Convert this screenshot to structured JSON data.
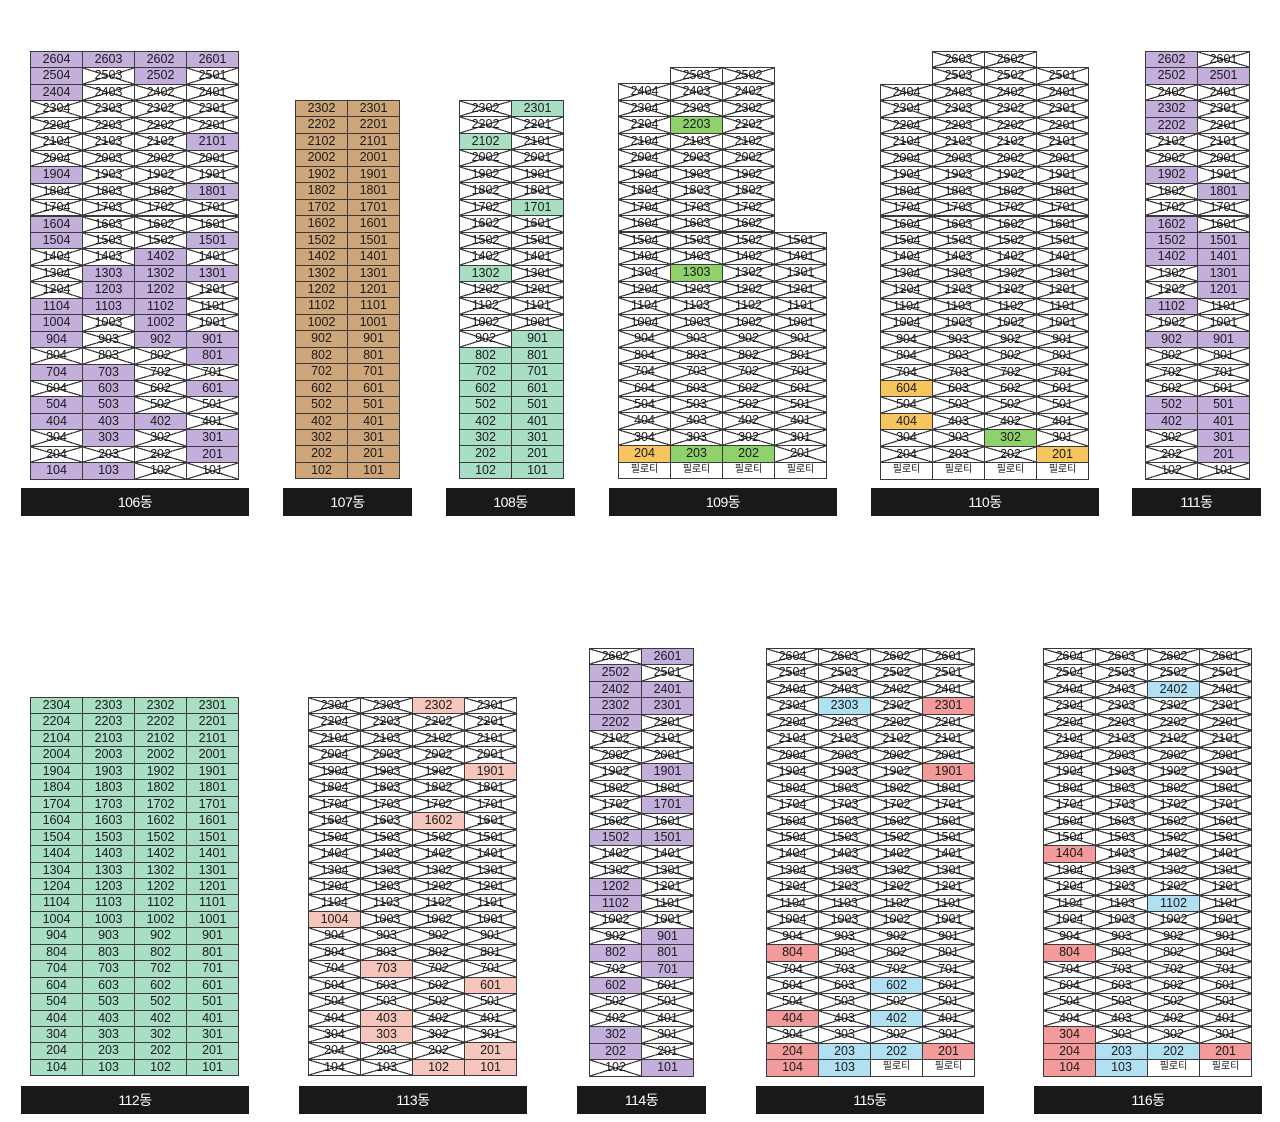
{
  "colors": {
    "P": "#c4aedc",
    "T": "#cfa67a",
    "G": "#a8dfc4",
    "L": "#8fd16a",
    "Y": "#f6c55d",
    "K": "#f6c5bc",
    "R": "#f39a9a",
    "B": "#b1e0f3",
    "X": "#ffffff",
    "pilotis": "#ffffff"
  },
  "pilotis_text": "필로티",
  "buildings": [
    {
      "name": "106동",
      "columns": [
        4,
        3,
        2,
        1
      ],
      "floors": [
        {
          "f": 26,
          "s": "PPPP"
        },
        {
          "f": 25,
          "s": "PXPX"
        },
        {
          "f": 24,
          "s": "PXXX"
        },
        {
          "f": 23,
          "s": "XXXX"
        },
        {
          "f": 22,
          "s": "XXXX"
        },
        {
          "f": 21,
          "s": "XXXP"
        },
        {
          "f": 20,
          "s": "XXXX"
        },
        {
          "f": 19,
          "s": "PXXX"
        },
        {
          "f": 18,
          "s": "XXXP"
        },
        {
          "f": 17,
          "s": "XXXX"
        },
        {
          "f": 16,
          "s": "PXXX"
        },
        {
          "f": 15,
          "s": "PXXP"
        },
        {
          "f": 14,
          "s": "XXPX"
        },
        {
          "f": 13,
          "s": "XPPP"
        },
        {
          "f": 12,
          "s": "XPPX"
        },
        {
          "f": 11,
          "s": "PPPX"
        },
        {
          "f": 10,
          "s": "PXPX"
        },
        {
          "f": 9,
          "s": "PXPP"
        },
        {
          "f": 8,
          "s": "XXXP"
        },
        {
          "f": 7,
          "s": "PPXX"
        },
        {
          "f": 6,
          "s": "XPXP"
        },
        {
          "f": 5,
          "s": "PPXX"
        },
        {
          "f": 4,
          "s": "PPPX"
        },
        {
          "f": 3,
          "s": "XPXP"
        },
        {
          "f": 2,
          "s": "XXXP"
        },
        {
          "f": 1,
          "s": "PPXX"
        }
      ]
    },
    {
      "name": "107동",
      "columns": [
        2,
        1
      ],
      "floors": [
        {
          "f": 23,
          "s": "TT"
        },
        {
          "f": 22,
          "s": "TT"
        },
        {
          "f": 21,
          "s": "TT"
        },
        {
          "f": 20,
          "s": "TT"
        },
        {
          "f": 19,
          "s": "TT"
        },
        {
          "f": 18,
          "s": "TT"
        },
        {
          "f": 17,
          "s": "TT"
        },
        {
          "f": 16,
          "s": "TT"
        },
        {
          "f": 15,
          "s": "TT"
        },
        {
          "f": 14,
          "s": "TT"
        },
        {
          "f": 13,
          "s": "TT"
        },
        {
          "f": 12,
          "s": "TT"
        },
        {
          "f": 11,
          "s": "TT"
        },
        {
          "f": 10,
          "s": "TT"
        },
        {
          "f": 9,
          "s": "TT"
        },
        {
          "f": 8,
          "s": "TT"
        },
        {
          "f": 7,
          "s": "TT"
        },
        {
          "f": 6,
          "s": "TT"
        },
        {
          "f": 5,
          "s": "TT"
        },
        {
          "f": 4,
          "s": "TT"
        },
        {
          "f": 3,
          "s": "TT"
        },
        {
          "f": 2,
          "s": "TT"
        },
        {
          "f": 1,
          "s": "TT"
        }
      ]
    },
    {
      "name": "108동",
      "columns": [
        2,
        1
      ],
      "floors": [
        {
          "f": 23,
          "s": "XG"
        },
        {
          "f": 22,
          "s": "XX"
        },
        {
          "f": 21,
          "s": "GX"
        },
        {
          "f": 20,
          "s": "XX"
        },
        {
          "f": 19,
          "s": "XX"
        },
        {
          "f": 18,
          "s": "XX"
        },
        {
          "f": 17,
          "s": "XG"
        },
        {
          "f": 16,
          "s": "XX"
        },
        {
          "f": 15,
          "s": "XX"
        },
        {
          "f": 14,
          "s": "XX"
        },
        {
          "f": 13,
          "s": "GX"
        },
        {
          "f": 12,
          "s": "XX"
        },
        {
          "f": 11,
          "s": "XX"
        },
        {
          "f": 10,
          "s": "XX"
        },
        {
          "f": 9,
          "s": "XG"
        },
        {
          "f": 8,
          "s": "GG"
        },
        {
          "f": 7,
          "s": "GG"
        },
        {
          "f": 6,
          "s": "GG"
        },
        {
          "f": 5,
          "s": "GG"
        },
        {
          "f": 4,
          "s": "GG"
        },
        {
          "f": 3,
          "s": "GG"
        },
        {
          "f": 2,
          "s": "GG"
        },
        {
          "f": 1,
          "s": "GG"
        }
      ]
    },
    {
      "name": "109동",
      "columns": [
        4,
        3,
        2,
        1
      ],
      "floors": [
        {
          "f": 25,
          "s": "-XX-"
        },
        {
          "f": 24,
          "s": "XXX-"
        },
        {
          "f": 23,
          "s": "XXX-"
        },
        {
          "f": 22,
          "s": "XLX-"
        },
        {
          "f": 21,
          "s": "XXX-"
        },
        {
          "f": 20,
          "s": "XXX-"
        },
        {
          "f": 19,
          "s": "XXX-"
        },
        {
          "f": 18,
          "s": "XXX-"
        },
        {
          "f": 17,
          "s": "XXX-"
        },
        {
          "f": 16,
          "s": "XXX-"
        },
        {
          "f": 15,
          "s": "XXXX"
        },
        {
          "f": 14,
          "s": "XXXX"
        },
        {
          "f": 13,
          "s": "XLXX"
        },
        {
          "f": 12,
          "s": "XXXX"
        },
        {
          "f": 11,
          "s": "XXXX"
        },
        {
          "f": 10,
          "s": "XXXX"
        },
        {
          "f": 9,
          "s": "XXXX"
        },
        {
          "f": 8,
          "s": "XXXX"
        },
        {
          "f": 7,
          "s": "XXXX"
        },
        {
          "f": 6,
          "s": "XXXX"
        },
        {
          "f": 5,
          "s": "XXXX"
        },
        {
          "f": 4,
          "s": "XXXX"
        },
        {
          "f": 3,
          "s": "XXXX"
        },
        {
          "f": 2,
          "s": "YLLX"
        },
        {
          "f": 1,
          "s": "pppp"
        }
      ]
    },
    {
      "name": "110동",
      "columns": [
        4,
        3,
        2,
        1
      ],
      "floors": [
        {
          "f": 26,
          "s": "-XX-"
        },
        {
          "f": 25,
          "s": "-XXX"
        },
        {
          "f": 24,
          "s": "XXXX"
        },
        {
          "f": 23,
          "s": "XXXX"
        },
        {
          "f": 22,
          "s": "XXXX"
        },
        {
          "f": 21,
          "s": "XXXX"
        },
        {
          "f": 20,
          "s": "XXXX"
        },
        {
          "f": 19,
          "s": "XXXX"
        },
        {
          "f": 18,
          "s": "XXXX"
        },
        {
          "f": 17,
          "s": "XXXX"
        },
        {
          "f": 16,
          "s": "XXXX"
        },
        {
          "f": 15,
          "s": "XXXX"
        },
        {
          "f": 14,
          "s": "XXXX"
        },
        {
          "f": 13,
          "s": "XXXX"
        },
        {
          "f": 12,
          "s": "XXXX"
        },
        {
          "f": 11,
          "s": "XXXX"
        },
        {
          "f": 10,
          "s": "XXXX"
        },
        {
          "f": 9,
          "s": "XXXX"
        },
        {
          "f": 8,
          "s": "XXXX"
        },
        {
          "f": 7,
          "s": "XXXX"
        },
        {
          "f": 6,
          "s": "YXXX"
        },
        {
          "f": 5,
          "s": "XXXX"
        },
        {
          "f": 4,
          "s": "YXXX"
        },
        {
          "f": 3,
          "s": "XXLX"
        },
        {
          "f": 2,
          "s": "XXXY"
        },
        {
          "f": 1,
          "s": "pppp"
        }
      ]
    },
    {
      "name": "111동",
      "columns": [
        2,
        1
      ],
      "floors": [
        {
          "f": 26,
          "s": "PX"
        },
        {
          "f": 25,
          "s": "PP"
        },
        {
          "f": 24,
          "s": "XX"
        },
        {
          "f": 23,
          "s": "PX"
        },
        {
          "f": 22,
          "s": "PX"
        },
        {
          "f": 21,
          "s": "XX"
        },
        {
          "f": 20,
          "s": "XX"
        },
        {
          "f": 19,
          "s": "PX"
        },
        {
          "f": 18,
          "s": "XP"
        },
        {
          "f": 17,
          "s": "XX"
        },
        {
          "f": 16,
          "s": "PX"
        },
        {
          "f": 15,
          "s": "PP"
        },
        {
          "f": 14,
          "s": "PP"
        },
        {
          "f": 13,
          "s": "XP"
        },
        {
          "f": 12,
          "s": "XP"
        },
        {
          "f": 11,
          "s": "PX"
        },
        {
          "f": 10,
          "s": "XX"
        },
        {
          "f": 9,
          "s": "PP"
        },
        {
          "f": 8,
          "s": "XX"
        },
        {
          "f": 7,
          "s": "XX"
        },
        {
          "f": 6,
          "s": "XX"
        },
        {
          "f": 5,
          "s": "PP"
        },
        {
          "f": 4,
          "s": "PP"
        },
        {
          "f": 3,
          "s": "XP"
        },
        {
          "f": 2,
          "s": "XP"
        },
        {
          "f": 1,
          "s": "XX"
        }
      ]
    },
    {
      "name": "112동",
      "columns": [
        4,
        3,
        2,
        1
      ],
      "floors": [
        {
          "f": 23,
          "s": "GGGG"
        },
        {
          "f": 22,
          "s": "GGGG"
        },
        {
          "f": 21,
          "s": "GGGG"
        },
        {
          "f": 20,
          "s": "GGGG"
        },
        {
          "f": 19,
          "s": "GGGG"
        },
        {
          "f": 18,
          "s": "GGGG"
        },
        {
          "f": 17,
          "s": "GGGG"
        },
        {
          "f": 16,
          "s": "GGGG"
        },
        {
          "f": 15,
          "s": "GGGG"
        },
        {
          "f": 14,
          "s": "GGGG"
        },
        {
          "f": 13,
          "s": "GGGG"
        },
        {
          "f": 12,
          "s": "GGGG"
        },
        {
          "f": 11,
          "s": "GGGG"
        },
        {
          "f": 10,
          "s": "GGGG"
        },
        {
          "f": 9,
          "s": "GGGG"
        },
        {
          "f": 8,
          "s": "GGGG"
        },
        {
          "f": 7,
          "s": "GGGG"
        },
        {
          "f": 6,
          "s": "GGGG"
        },
        {
          "f": 5,
          "s": "GGGG"
        },
        {
          "f": 4,
          "s": "GGGG"
        },
        {
          "f": 3,
          "s": "GGGG"
        },
        {
          "f": 2,
          "s": "GGGG"
        },
        {
          "f": 1,
          "s": "GGGG"
        }
      ]
    },
    {
      "name": "113동",
      "columns": [
        4,
        3,
        2,
        1
      ],
      "floors": [
        {
          "f": 23,
          "s": "XXKX"
        },
        {
          "f": 22,
          "s": "XXXX"
        },
        {
          "f": 21,
          "s": "XXXX"
        },
        {
          "f": 20,
          "s": "XXXX"
        },
        {
          "f": 19,
          "s": "XXXK"
        },
        {
          "f": 18,
          "s": "XXXX"
        },
        {
          "f": 17,
          "s": "XXXX"
        },
        {
          "f": 16,
          "s": "XXKX"
        },
        {
          "f": 15,
          "s": "XXXX"
        },
        {
          "f": 14,
          "s": "XXXX"
        },
        {
          "f": 13,
          "s": "XXXX"
        },
        {
          "f": 12,
          "s": "XXXX"
        },
        {
          "f": 11,
          "s": "XXXX"
        },
        {
          "f": 10,
          "s": "KXXX"
        },
        {
          "f": 9,
          "s": "XXXX"
        },
        {
          "f": 8,
          "s": "XXXX"
        },
        {
          "f": 7,
          "s": "XKXX"
        },
        {
          "f": 6,
          "s": "XXXK"
        },
        {
          "f": 5,
          "s": "XXXX"
        },
        {
          "f": 4,
          "s": "XKXX"
        },
        {
          "f": 3,
          "s": "XKXX"
        },
        {
          "f": 2,
          "s": "XXXK"
        },
        {
          "f": 1,
          "s": "XXKK"
        }
      ]
    },
    {
      "name": "114동",
      "columns": [
        2,
        1
      ],
      "floors": [
        {
          "f": 26,
          "s": "XP"
        },
        {
          "f": 25,
          "s": "PX"
        },
        {
          "f": 24,
          "s": "PP"
        },
        {
          "f": 23,
          "s": "PP"
        },
        {
          "f": 22,
          "s": "PX"
        },
        {
          "f": 21,
          "s": "XX"
        },
        {
          "f": 20,
          "s": "XX"
        },
        {
          "f": 19,
          "s": "XP"
        },
        {
          "f": 18,
          "s": "XX"
        },
        {
          "f": 17,
          "s": "XP"
        },
        {
          "f": 16,
          "s": "XX"
        },
        {
          "f": 15,
          "s": "PP"
        },
        {
          "f": 14,
          "s": "XX"
        },
        {
          "f": 13,
          "s": "XX"
        },
        {
          "f": 12,
          "s": "PX"
        },
        {
          "f": 11,
          "s": "PX"
        },
        {
          "f": 10,
          "s": "XX"
        },
        {
          "f": 9,
          "s": "XP"
        },
        {
          "f": 8,
          "s": "PP"
        },
        {
          "f": 7,
          "s": "XP"
        },
        {
          "f": 6,
          "s": "PX"
        },
        {
          "f": 5,
          "s": "XX"
        },
        {
          "f": 4,
          "s": "XX"
        },
        {
          "f": 3,
          "s": "PX"
        },
        {
          "f": 2,
          "s": "PX"
        },
        {
          "f": 1,
          "s": "XP"
        }
      ]
    },
    {
      "name": "115동",
      "columns": [
        4,
        3,
        2,
        1
      ],
      "floors": [
        {
          "f": 26,
          "s": "XXXX"
        },
        {
          "f": 25,
          "s": "XXXX"
        },
        {
          "f": 24,
          "s": "XXXX"
        },
        {
          "f": 23,
          "s": "XBXR"
        },
        {
          "f": 22,
          "s": "XXXX"
        },
        {
          "f": 21,
          "s": "XXXX"
        },
        {
          "f": 20,
          "s": "XXXX"
        },
        {
          "f": 19,
          "s": "XXXR"
        },
        {
          "f": 18,
          "s": "XXXX"
        },
        {
          "f": 17,
          "s": "XXXX"
        },
        {
          "f": 16,
          "s": "XXXX"
        },
        {
          "f": 15,
          "s": "XXXX"
        },
        {
          "f": 14,
          "s": "XXXX"
        },
        {
          "f": 13,
          "s": "XXXX"
        },
        {
          "f": 12,
          "s": "XXXX"
        },
        {
          "f": 11,
          "s": "XXXX"
        },
        {
          "f": 10,
          "s": "XXXX"
        },
        {
          "f": 9,
          "s": "XXXX"
        },
        {
          "f": 8,
          "s": "RXXX"
        },
        {
          "f": 7,
          "s": "XXXX"
        },
        {
          "f": 6,
          "s": "XXBX"
        },
        {
          "f": 5,
          "s": "XXXX"
        },
        {
          "f": 4,
          "s": "RXBX"
        },
        {
          "f": 3,
          "s": "XXXX"
        },
        {
          "f": 2,
          "s": "RBBR"
        },
        {
          "f": 1,
          "s": "RBpp"
        }
      ]
    },
    {
      "name": "116동",
      "columns": [
        4,
        3,
        2,
        1
      ],
      "floors": [
        {
          "f": 26,
          "s": "XXXX"
        },
        {
          "f": 25,
          "s": "XXXX"
        },
        {
          "f": 24,
          "s": "XXBX"
        },
        {
          "f": 23,
          "s": "XXXX"
        },
        {
          "f": 22,
          "s": "XXXX"
        },
        {
          "f": 21,
          "s": "XXXX"
        },
        {
          "f": 20,
          "s": "XXXX"
        },
        {
          "f": 19,
          "s": "XXXX"
        },
        {
          "f": 18,
          "s": "XXXX"
        },
        {
          "f": 17,
          "s": "XXXX"
        },
        {
          "f": 16,
          "s": "XXXX"
        },
        {
          "f": 15,
          "s": "XXXX"
        },
        {
          "f": 14,
          "s": "RXXX"
        },
        {
          "f": 13,
          "s": "XXXX"
        },
        {
          "f": 12,
          "s": "XXXX"
        },
        {
          "f": 11,
          "s": "XXBX"
        },
        {
          "f": 10,
          "s": "XXXX"
        },
        {
          "f": 9,
          "s": "XXXX"
        },
        {
          "f": 8,
          "s": "RXXX"
        },
        {
          "f": 7,
          "s": "XXXX"
        },
        {
          "f": 6,
          "s": "XXXX"
        },
        {
          "f": 5,
          "s": "XXXX"
        },
        {
          "f": 4,
          "s": "XXXX"
        },
        {
          "f": 3,
          "s": "RXXX"
        },
        {
          "f": 2,
          "s": "RBBR"
        },
        {
          "f": 1,
          "s": "RBpp"
        }
      ]
    }
  ]
}
